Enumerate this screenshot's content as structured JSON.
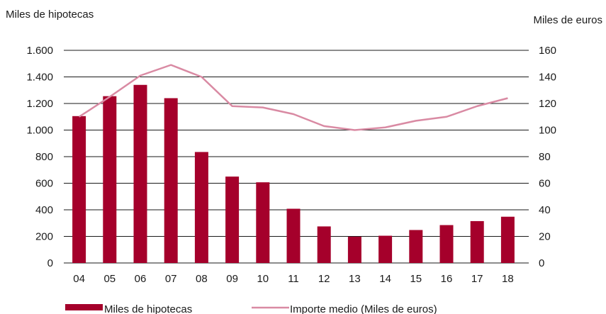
{
  "chart_data": {
    "type": "bar",
    "categories": [
      "04",
      "05",
      "06",
      "07",
      "08",
      "09",
      "10",
      "11",
      "12",
      "13",
      "14",
      "15",
      "16",
      "17",
      "18"
    ],
    "left_axis": {
      "label": "Miles de hipotecas",
      "ylim": [
        0,
        1600
      ],
      "ticks": [
        0,
        200,
        400,
        600,
        800,
        1000,
        1200,
        1400,
        1600
      ],
      "tick_labels": [
        "0",
        "200",
        "400",
        "600",
        "800",
        "1.000",
        "1.200",
        "1.400",
        "1.600"
      ]
    },
    "right_axis": {
      "label": "Miles de euros",
      "ylim": [
        0,
        160
      ],
      "ticks": [
        0,
        20,
        40,
        60,
        80,
        100,
        120,
        140,
        160
      ],
      "tick_labels": [
        "0",
        "20",
        "40",
        "60",
        "80",
        "100",
        "120",
        "140",
        "160"
      ]
    },
    "series": [
      {
        "name": "Miles de hipotecas",
        "kind": "bar",
        "axis": "left",
        "color": "#a5002b",
        "values": [
          1105,
          1255,
          1340,
          1240,
          835,
          650,
          607,
          408,
          275,
          198,
          205,
          248,
          285,
          315,
          348
        ]
      },
      {
        "name": "Importe medio (Miles de euros)",
        "kind": "line",
        "axis": "right",
        "color": "#d98aa3",
        "values": [
          110,
          125,
          141,
          149,
          140,
          118,
          117,
          112,
          103,
          100,
          102,
          107,
          110,
          118,
          124
        ]
      }
    ],
    "grid": true,
    "legend_position": "bottom"
  }
}
